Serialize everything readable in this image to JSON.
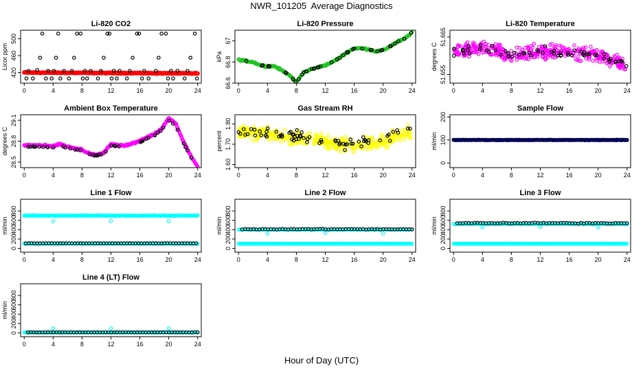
{
  "title": "NWR_101205  Average Diagnostics",
  "xlabel": "Hour of Day (UTC)",
  "chart_data": [
    {
      "type": "scatter",
      "title": "Li-820 CO2",
      "ylabel": "Licor ppm",
      "xlim": [
        -0.5,
        24.5
      ],
      "ylim": [
        395,
        520
      ],
      "xticks": [
        0,
        4,
        8,
        12,
        16,
        20,
        24
      ],
      "yticks": [
        420,
        460,
        500
      ],
      "series": [
        {
          "color": "#ff0000",
          "kind": "band",
          "x_range": [
            0,
            24
          ],
          "y_start": 420,
          "y_end": 418,
          "density": 220
        },
        {
          "color": "#000000",
          "kind": "points",
          "x": [
            0.3,
            0.6,
            1.2,
            1.8,
            2.2,
            2.5,
            3.0,
            3.3,
            3.8,
            4.1,
            4.4,
            4.7,
            5.0,
            5.5,
            6.2,
            6.6,
            6.9,
            7.3,
            7.8,
            8.1,
            8.4,
            8.7,
            9.2,
            10.2,
            10.6,
            11.0,
            11.5,
            11.8,
            12.1,
            12.4,
            12.8,
            13.2,
            14.2,
            14.6,
            15.0,
            15.6,
            15.9,
            16.3,
            16.6,
            17.2,
            18.2,
            18.6,
            19.0,
            19.6,
            19.9,
            20.3,
            20.6,
            21.2,
            22.2,
            22.6,
            23.0,
            23.6,
            23.9
          ],
          "y": [
            406,
            424,
            406,
            426,
            455,
            512,
            406,
            424,
            406,
            424,
            455,
            512,
            406,
            424,
            406,
            424,
            455,
            512,
            512,
            406,
            424,
            406,
            424,
            406,
            424,
            455,
            512,
            512,
            406,
            424,
            406,
            424,
            406,
            424,
            455,
            512,
            512,
            406,
            424,
            406,
            424,
            455,
            512,
            512,
            406,
            424,
            406,
            424,
            406,
            424,
            455,
            512,
            406
          ]
        }
      ]
    },
    {
      "type": "scatter",
      "title": "Li-820 Pressure",
      "ylabel": "kPa",
      "xlim": [
        -0.5,
        24.5
      ],
      "ylim": [
        66.6,
        67.1
      ],
      "xticks": [
        0,
        4,
        8,
        12,
        16,
        20,
        24
      ],
      "yticks": [
        66.6,
        66.8,
        67.0
      ],
      "series": [
        {
          "color": "#22c322",
          "kind": "curve",
          "x": [
            0,
            1,
            2,
            3,
            4,
            5,
            6,
            7,
            7.5,
            8,
            9,
            10,
            11,
            12,
            13,
            14,
            15,
            16,
            17,
            18,
            19,
            20,
            21,
            22,
            23,
            24
          ],
          "y": [
            66.82,
            66.81,
            66.8,
            66.77,
            66.76,
            66.76,
            66.72,
            66.68,
            66.64,
            66.61,
            66.7,
            66.73,
            66.75,
            66.77,
            66.8,
            66.84,
            66.89,
            66.93,
            66.93,
            66.92,
            66.9,
            66.91,
            66.95,
            66.99,
            67.02,
            67.08
          ],
          "jitter": 0.012,
          "density": 260
        },
        {
          "color": "#000000",
          "kind": "curve-sample",
          "x": [
            0,
            1,
            2,
            3,
            4,
            5,
            6,
            7,
            7.5,
            8,
            9,
            10,
            11,
            12,
            13,
            14,
            15,
            16,
            17,
            18,
            19,
            20,
            21,
            22,
            23,
            24
          ],
          "y": [
            66.82,
            66.81,
            66.8,
            66.77,
            66.76,
            66.76,
            66.72,
            66.68,
            66.64,
            66.61,
            66.7,
            66.73,
            66.75,
            66.77,
            66.8,
            66.84,
            66.89,
            66.93,
            66.93,
            66.92,
            66.9,
            66.91,
            66.95,
            66.99,
            67.02,
            67.08
          ],
          "jitter": 0.005,
          "density": 45
        }
      ]
    },
    {
      "type": "scatter",
      "title": "Li-820 Temperature",
      "ylabel": "degrees C",
      "xlim": [
        -0.5,
        24.5
      ],
      "ylim": [
        51.6527,
        51.6668
      ],
      "xticks": [
        0,
        4,
        8,
        12,
        16,
        20,
        24
      ],
      "yticks": [
        51.655,
        51.665
      ],
      "ytick_labels": [
        "51.655",
        "51.665"
      ],
      "series": [
        {
          "color": "#ff00ff",
          "kind": "noise",
          "x": [
            0,
            4,
            8,
            12,
            16,
            20,
            22,
            24
          ],
          "y": [
            51.661,
            51.662,
            51.66,
            51.661,
            51.661,
            51.66,
            51.659,
            51.657
          ],
          "jitter": 0.0028,
          "density": 420
        },
        {
          "color": "#000000",
          "kind": "noise",
          "x": [
            0,
            4,
            8,
            12,
            16,
            20,
            22,
            24
          ],
          "y": [
            51.661,
            51.662,
            51.66,
            51.661,
            51.661,
            51.66,
            51.659,
            51.657
          ],
          "jitter": 0.0018,
          "density": 60
        }
      ]
    },
    {
      "type": "scatter",
      "title": "Ambient Box Temperature",
      "ylabel": "degrees C",
      "xlim": [
        -0.5,
        24.5
      ],
      "ylim": [
        28.42,
        29.18
      ],
      "xticks": [
        0,
        4,
        8,
        12,
        16,
        20,
        24
      ],
      "yticks": [
        28.5,
        28.8,
        29.1
      ],
      "series": [
        {
          "color": "#ff00ff",
          "kind": "curve",
          "x": [
            0,
            2,
            4,
            5,
            6,
            7,
            8,
            9,
            10,
            11,
            12,
            13,
            14,
            15,
            16,
            17,
            18,
            19,
            20,
            21,
            22,
            23,
            24
          ],
          "y": [
            28.74,
            28.74,
            28.73,
            28.76,
            28.72,
            28.7,
            28.68,
            28.62,
            28.6,
            28.63,
            28.76,
            28.74,
            28.74,
            28.77,
            28.8,
            28.86,
            28.9,
            28.98,
            29.13,
            29.05,
            28.8,
            28.6,
            28.43
          ],
          "jitter": 0.018,
          "density": 320
        },
        {
          "color": "#000000",
          "kind": "curve-sample",
          "x": [
            0,
            2,
            4,
            5,
            6,
            7,
            8,
            9,
            10,
            11,
            12,
            13,
            14,
            15,
            16,
            17,
            18,
            19,
            20,
            21,
            22,
            23,
            24
          ],
          "y": [
            28.72,
            28.72,
            28.71,
            28.73,
            28.7,
            28.68,
            28.66,
            28.61,
            28.59,
            28.62,
            28.74,
            28.72,
            28.72,
            28.75,
            28.78,
            28.84,
            28.88,
            28.96,
            29.1,
            29.02,
            28.78,
            28.58,
            28.42
          ],
          "jitter": 0.008,
          "density": 45
        }
      ]
    },
    {
      "type": "scatter",
      "title": "Gas Stream RH",
      "ylabel": "percent",
      "xlim": [
        -0.5,
        24.5
      ],
      "ylim": [
        1.585,
        1.845
      ],
      "xticks": [
        0,
        4,
        8,
        12,
        16,
        20,
        24
      ],
      "yticks": [
        1.6,
        1.7,
        1.8
      ],
      "ytick_labels": [
        "1.60",
        "1.70",
        "1.80"
      ],
      "series": [
        {
          "color": "#ffff00",
          "kind": "noise",
          "x": [
            0,
            4,
            8,
            12,
            16,
            20,
            24
          ],
          "y": [
            1.76,
            1.75,
            1.73,
            1.71,
            1.69,
            1.72,
            1.76
          ],
          "jitter": 0.05,
          "density": 420
        },
        {
          "color": "#000000",
          "kind": "noise",
          "x": [
            0,
            4,
            8,
            12,
            16,
            20,
            24
          ],
          "y": [
            1.77,
            1.76,
            1.74,
            1.72,
            1.7,
            1.73,
            1.77
          ],
          "jitter": 0.04,
          "density": 70
        }
      ]
    },
    {
      "type": "scatter",
      "title": "Sample Flow",
      "ylabel": "ml/min",
      "xlim": [
        -0.5,
        24.5
      ],
      "ylim": [
        -20,
        210
      ],
      "xticks": [
        0,
        4,
        8,
        12,
        16,
        20,
        24
      ],
      "yticks": [
        0,
        100,
        200
      ],
      "series": [
        {
          "color": "#0000cc",
          "kind": "flat",
          "x_range": [
            0,
            24
          ],
          "y": 100,
          "jitter": 1.5,
          "density": 200
        },
        {
          "color": "#000000",
          "kind": "flat",
          "x_range": [
            0,
            24
          ],
          "y": 101,
          "jitter": 1,
          "density": 70
        }
      ]
    },
    {
      "type": "scatter",
      "title": "Line 1 Flow",
      "ylabel": "ml/min",
      "xlim": [
        -0.5,
        24.5
      ],
      "ylim": [
        -80,
        1050
      ],
      "xticks": [
        0,
        4,
        8,
        12,
        16,
        20,
        24
      ],
      "yticks": [
        0,
        200,
        400,
        600,
        800
      ],
      "series": [
        {
          "color": "#00ffff",
          "kind": "flat",
          "x_range": [
            0,
            24
          ],
          "y": 700,
          "jitter": 12,
          "density": 200,
          "outliers_x": [
            4,
            12,
            20
          ],
          "outliers_y": [
            580,
            585,
            580
          ]
        },
        {
          "color": "#00ffff",
          "kind": "flat",
          "x_range": [
            0,
            24
          ],
          "y": 100,
          "jitter": 4,
          "density": 120
        },
        {
          "color": "#000000",
          "kind": "flat",
          "x_range": [
            0.2,
            23.8
          ],
          "y": 110,
          "jitter": 3,
          "density": 60
        }
      ]
    },
    {
      "type": "scatter",
      "title": "Line 2 Flow",
      "ylabel": "ml/min",
      "xlim": [
        -0.5,
        24.5
      ],
      "ylim": [
        -80,
        1050
      ],
      "xticks": [
        0,
        4,
        8,
        12,
        16,
        20,
        24
      ],
      "yticks": [
        0,
        200,
        400,
        600,
        800
      ],
      "series": [
        {
          "color": "#00ffff",
          "kind": "flat",
          "x_range": [
            0,
            24
          ],
          "y": 400,
          "jitter": 6,
          "density": 120,
          "outliers_x": [
            4,
            12,
            20
          ],
          "outliers_y": [
            320,
            330,
            320
          ]
        },
        {
          "color": "#00ffff",
          "kind": "flat",
          "x_range": [
            0,
            24
          ],
          "y": 100,
          "jitter": 4,
          "density": 160
        },
        {
          "color": "#000000",
          "kind": "flat",
          "x_range": [
            0.5,
            24
          ],
          "y": 410,
          "jitter": 10,
          "density": 60
        }
      ]
    },
    {
      "type": "scatter",
      "title": "Line 3 Flow",
      "ylabel": "ml/min",
      "xlim": [
        -0.5,
        24.5
      ],
      "ylim": [
        -80,
        1050
      ],
      "xticks": [
        0,
        4,
        8,
        12,
        16,
        20,
        24
      ],
      "yticks": [
        0,
        200,
        400,
        600,
        800
      ],
      "series": [
        {
          "color": "#00ffff",
          "kind": "flat",
          "x_range": [
            0,
            24
          ],
          "y": 520,
          "jitter": 8,
          "density": 120,
          "outliers_x": [
            4,
            12,
            20
          ],
          "outliers_y": [
            450,
            460,
            450
          ]
        },
        {
          "color": "#00ffff",
          "kind": "flat",
          "x_range": [
            0,
            24
          ],
          "y": 100,
          "jitter": 4,
          "density": 160
        },
        {
          "color": "#000000",
          "kind": "flat",
          "x_range": [
            0.5,
            24
          ],
          "y": 540,
          "jitter": 12,
          "density": 60
        }
      ]
    },
    {
      "type": "scatter",
      "title": "Line 4 (LT) Flow",
      "ylabel": "ml/min",
      "xlim": [
        -0.5,
        24.5
      ],
      "ylim": [
        -80,
        1050
      ],
      "xticks": [
        0,
        4,
        8,
        12,
        16,
        20,
        24
      ],
      "yticks": [
        0,
        200,
        400,
        600,
        800
      ],
      "series": [
        {
          "color": "#00ffff",
          "kind": "flat",
          "x_range": [
            0,
            24
          ],
          "y": 10,
          "jitter": 3,
          "density": 160,
          "outliers_x": [
            4,
            12,
            20
          ],
          "outliers_y": [
            95,
            95,
            95
          ]
        },
        {
          "color": "#000000",
          "kind": "flat",
          "x_range": [
            0.5,
            24
          ],
          "y": 12,
          "jitter": 3,
          "density": 60
        }
      ]
    }
  ]
}
